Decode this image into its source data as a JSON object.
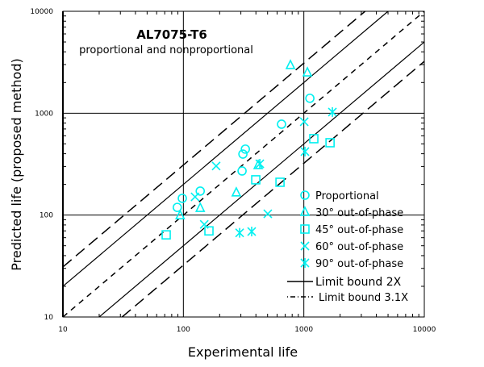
{
  "chart_data": {
    "type": "scatter",
    "title": "AL7075-T6",
    "subtitle": "proportional and nonproportional",
    "xlabel": "Experimental life",
    "ylabel": "Predicted life (proposed method)",
    "xscale": "log",
    "yscale": "log",
    "xlim": [
      10,
      10000
    ],
    "ylim": [
      10,
      10000
    ],
    "xticks": [
      "10",
      "100",
      "1000",
      "10000"
    ],
    "yticks": [
      "10",
      "100",
      "1000",
      "10000"
    ],
    "grid": true,
    "legend_position": "bottom-right",
    "marker_color": "#00f0f0",
    "series": [
      {
        "name": "Proportional",
        "marker": "circle",
        "points": [
          [
            653,
            780
          ],
          [
            1122,
            1400
          ],
          [
            327,
            444
          ],
          [
            312,
            397
          ],
          [
            307,
            271
          ],
          [
            138,
            172
          ],
          [
            98,
            146
          ],
          [
            89,
            119
          ]
        ]
      },
      {
        "name": "30° out-of-phase",
        "marker": "triangle",
        "points": [
          [
            774,
            2950
          ],
          [
            1070,
            2500
          ],
          [
            418,
            308
          ],
          [
            275,
            166
          ],
          [
            138,
            117
          ],
          [
            94,
            99
          ]
        ]
      },
      {
        "name": "45° out-of-phase",
        "marker": "square",
        "points": [
          [
            1210,
            562
          ],
          [
            1650,
            513
          ],
          [
            399,
            222
          ],
          [
            634,
            210
          ],
          [
            163,
            70
          ],
          [
            72,
            64
          ]
        ]
      },
      {
        "name": "60° out-of-phase",
        "marker": "x",
        "points": [
          [
            187,
            303
          ],
          [
            125,
            151
          ],
          [
            502,
            103
          ],
          [
            149,
            81
          ],
          [
            1007,
            824
          ]
        ]
      },
      {
        "name": "90° out-of-phase",
        "marker": "asterisk",
        "points": [
          [
            431,
            319
          ],
          [
            293,
            67
          ],
          [
            369,
            69
          ],
          [
            1021,
            420
          ],
          [
            1726,
            1026
          ]
        ]
      }
    ],
    "reference_lines": [
      {
        "name": "Limit bound 2X",
        "style": "solid",
        "factors": [
          2,
          0.5
        ]
      },
      {
        "name": "Limit bound 3.1X",
        "style": "long-dash",
        "factors": [
          3.1,
          0.3226
        ]
      },
      {
        "style": "dashed",
        "factors": [
          1
        ]
      }
    ]
  }
}
